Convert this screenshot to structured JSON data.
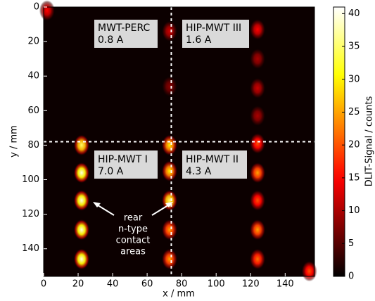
{
  "chart_data": {
    "type": "heatmap",
    "x_label": "x / mm",
    "y_label": "y / mm",
    "colorbar_label": "DLIT-Signal / counts",
    "colormap": "hot",
    "xlim": [
      0,
      157
    ],
    "ylim": [
      156,
      0
    ],
    "xticks": [
      0,
      20,
      40,
      60,
      80,
      100,
      120,
      140
    ],
    "yticks": [
      0,
      20,
      40,
      60,
      80,
      100,
      120,
      140
    ],
    "clim": [
      0,
      41
    ],
    "cticks": [
      0,
      5,
      10,
      15,
      20,
      25,
      30,
      35,
      40
    ],
    "divider_x": 74,
    "divider_y": 78,
    "spots": {
      "x": [
        22,
        22,
        22,
        22,
        22,
        73,
        73,
        73,
        73,
        73,
        73,
        73,
        124,
        124,
        124,
        124,
        124,
        124,
        124,
        124,
        124,
        2,
        154
      ],
      "y": [
        80,
        96,
        112,
        129,
        146,
        14,
        46,
        80,
        95,
        112,
        129,
        146,
        13,
        30,
        47,
        63,
        79,
        96,
        112,
        129,
        146,
        2,
        153
      ],
      "values": [
        35,
        40,
        40,
        40,
        40,
        12,
        8,
        30,
        30,
        35,
        25,
        25,
        15,
        10,
        12,
        10,
        20,
        25,
        20,
        25,
        22,
        15,
        20
      ]
    },
    "regions": [
      {
        "name": "MWT-PERC",
        "current": "0.8 A"
      },
      {
        "name": "HIP-MWT III",
        "current": "1.6 A"
      },
      {
        "name": "HIP-MWT I",
        "current": "7.0 A"
      },
      {
        "name": "HIP-MWT II",
        "current": "4.3 A"
      }
    ],
    "annotation": [
      "rear",
      "n-type",
      "contact",
      "areas"
    ]
  }
}
